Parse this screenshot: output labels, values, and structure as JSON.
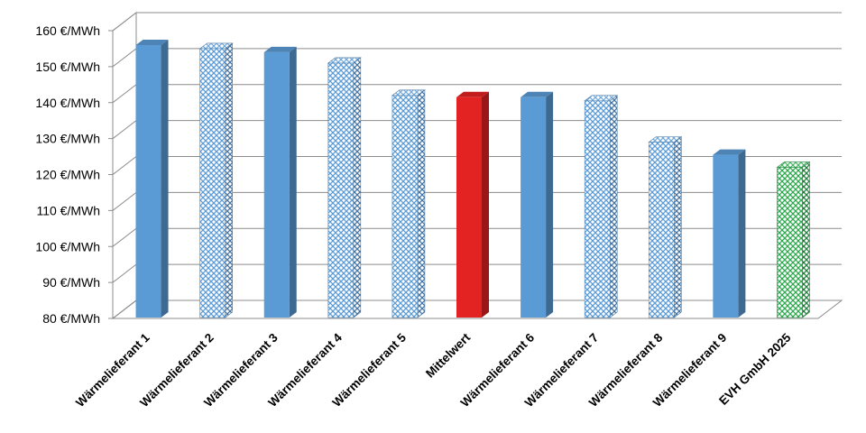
{
  "chart_data": {
    "type": "bar",
    "title": "",
    "xlabel": "",
    "ylabel": "",
    "categories": [
      "Wärmelieferant 1",
      "Wärmelieferant 2",
      "Wärmelieferant 3",
      "Wärmelieferant 4",
      "Wärmelieferant 5",
      "Mittelwert",
      "Wärmelieferant 6",
      "Wärmelieferant 7",
      "Wärmelieferant 8",
      "Wärmelieferant 9",
      "EVH GmbH 2025"
    ],
    "values": [
      156,
      155,
      154,
      151,
      142,
      141.5,
      141.5,
      140.5,
      129,
      125.5,
      122
    ],
    "fill_styles": [
      "solid",
      "pattern",
      "solid",
      "pattern",
      "pattern",
      "solid",
      "solid",
      "pattern",
      "pattern",
      "solid",
      "pattern"
    ],
    "colors": [
      "#5b9bd5",
      "#5b9bd5",
      "#5b9bd5",
      "#5b9bd5",
      "#5b9bd5",
      "#e32222",
      "#5b9bd5",
      "#5b9bd5",
      "#5b9bd5",
      "#5b9bd5",
      "#2ea84f"
    ],
    "ylim": [
      80,
      160
    ],
    "y_ticks": [
      80,
      90,
      100,
      110,
      120,
      130,
      140,
      150,
      160
    ],
    "y_tick_labels": [
      "80 €/MWh",
      "90 €/MWh",
      "100 €/MWh",
      "110 €/MWh",
      "120 €/MWh",
      "130 €/MWh",
      "140 €/MWh",
      "150 €/MWh",
      "160 €/MWh"
    ],
    "grid": true,
    "legend": "none",
    "style": "3d"
  }
}
